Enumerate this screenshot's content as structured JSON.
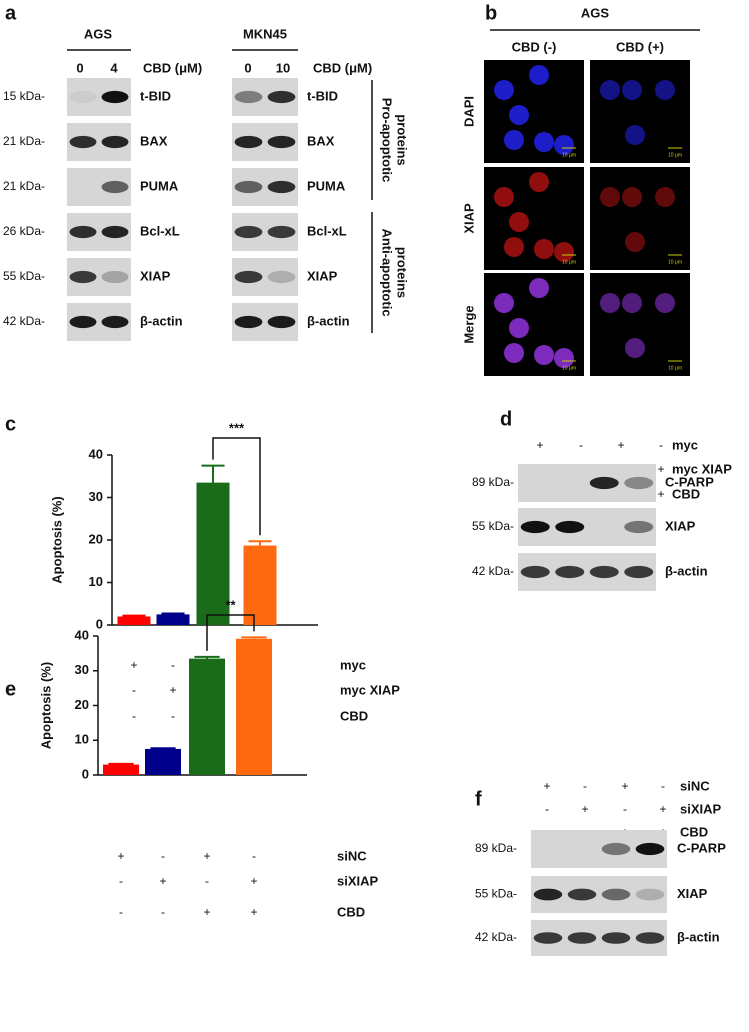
{
  "panel_a": {
    "letter": "a",
    "unit_label": "CBD (μM)",
    "groups": [
      {
        "name": "AGS",
        "doses": [
          "0",
          "4"
        ]
      },
      {
        "name": "MKN45",
        "doses": [
          "0",
          "10"
        ]
      }
    ],
    "rows": [
      {
        "kda": "15 kDa-",
        "protein": "t-BID"
      },
      {
        "kda": "21 kDa-",
        "protein": "BAX"
      },
      {
        "kda": "21 kDa-",
        "protein": "PUMA"
      },
      {
        "kda": "26 kDa-",
        "protein": "Bcl-xL"
      },
      {
        "kda": "55 kDa-",
        "protein": "XIAP"
      },
      {
        "kda": "42 kDa-",
        "protein": "β-actin"
      }
    ],
    "side_labels": [
      [
        "Pro-apoptotic",
        "proteins"
      ],
      [
        "Anti-apoptotic",
        "proteins"
      ]
    ]
  },
  "panel_b": {
    "letter": "b",
    "title": "AGS",
    "columns": [
      "CBD (-)",
      "CBD (+)"
    ],
    "rows": [
      "DAPI",
      "XIAP",
      "Merge"
    ],
    "scale_bar": "10 μm"
  },
  "chart_data": [
    {
      "panel": "c",
      "type": "bar",
      "ylabel": "Apoptosis (%)",
      "values": [
        2,
        2.5,
        33.5,
        18.7
      ],
      "errors": [
        0.2,
        0.2,
        4,
        1
      ],
      "colors": [
        "#ff0000",
        "#00008b",
        "#1a6b1a",
        "#ff6a10"
      ],
      "ylim": [
        0,
        40
      ],
      "yticks": [
        0,
        10,
        20,
        30,
        40
      ],
      "significance": "***",
      "conditions": [
        {
          "name": "myc",
          "signs": [
            "+",
            "-",
            "+",
            "-"
          ]
        },
        {
          "name": "myc XIAP",
          "signs": [
            "-",
            "+",
            "-",
            "+"
          ]
        },
        {
          "name": "CBD",
          "signs": [
            "-",
            "-",
            "+",
            "+"
          ]
        }
      ]
    },
    {
      "panel": "e",
      "type": "bar",
      "ylabel": "Apoptosis (%)",
      "values": [
        3,
        7.5,
        33.5,
        39.2
      ],
      "errors": [
        0.2,
        0.2,
        0.5,
        0.4
      ],
      "colors": [
        "#ff0000",
        "#00008b",
        "#1a6b1a",
        "#ff6a10"
      ],
      "ylim": [
        0,
        40
      ],
      "yticks": [
        0,
        10,
        20,
        30,
        40
      ],
      "significance": "**",
      "conditions": [
        {
          "name": "siNC",
          "signs": [
            "+",
            "-",
            "+",
            "-"
          ]
        },
        {
          "name": "siXIAP",
          "signs": [
            "-",
            "+",
            "-",
            "+"
          ]
        },
        {
          "name": "CBD",
          "signs": [
            "-",
            "-",
            "+",
            "+"
          ]
        }
      ]
    }
  ],
  "panel_d": {
    "letter": "d",
    "conditions": [
      {
        "name": "myc",
        "signs": [
          "+",
          "-",
          "+",
          "-"
        ]
      },
      {
        "name": "myc XIAP",
        "signs": [
          "-",
          "+",
          "-",
          "+"
        ]
      },
      {
        "name": "CBD",
        "signs": [
          "-",
          "-",
          "+",
          "+"
        ]
      }
    ],
    "rows": [
      {
        "kda": "89 kDa-",
        "protein": "C-PARP"
      },
      {
        "kda": "55 kDa-",
        "protein": "XIAP"
      },
      {
        "kda": "42 kDa-",
        "protein": "β-actin"
      }
    ]
  },
  "panel_f": {
    "letter": "f",
    "conditions": [
      {
        "name": "siNC",
        "signs": [
          "+",
          "-",
          "+",
          "-"
        ]
      },
      {
        "name": "siXIAP",
        "signs": [
          "-",
          "+",
          "-",
          "+"
        ]
      },
      {
        "name": "CBD",
        "signs": [
          "-",
          "-",
          "+",
          "+"
        ]
      }
    ],
    "rows": [
      {
        "kda": "89 kDa-",
        "protein": "C-PARP"
      },
      {
        "kda": "55 kDa-",
        "protein": "XIAP"
      },
      {
        "kda": "42 kDa-",
        "protein": "β-actin"
      }
    ]
  }
}
